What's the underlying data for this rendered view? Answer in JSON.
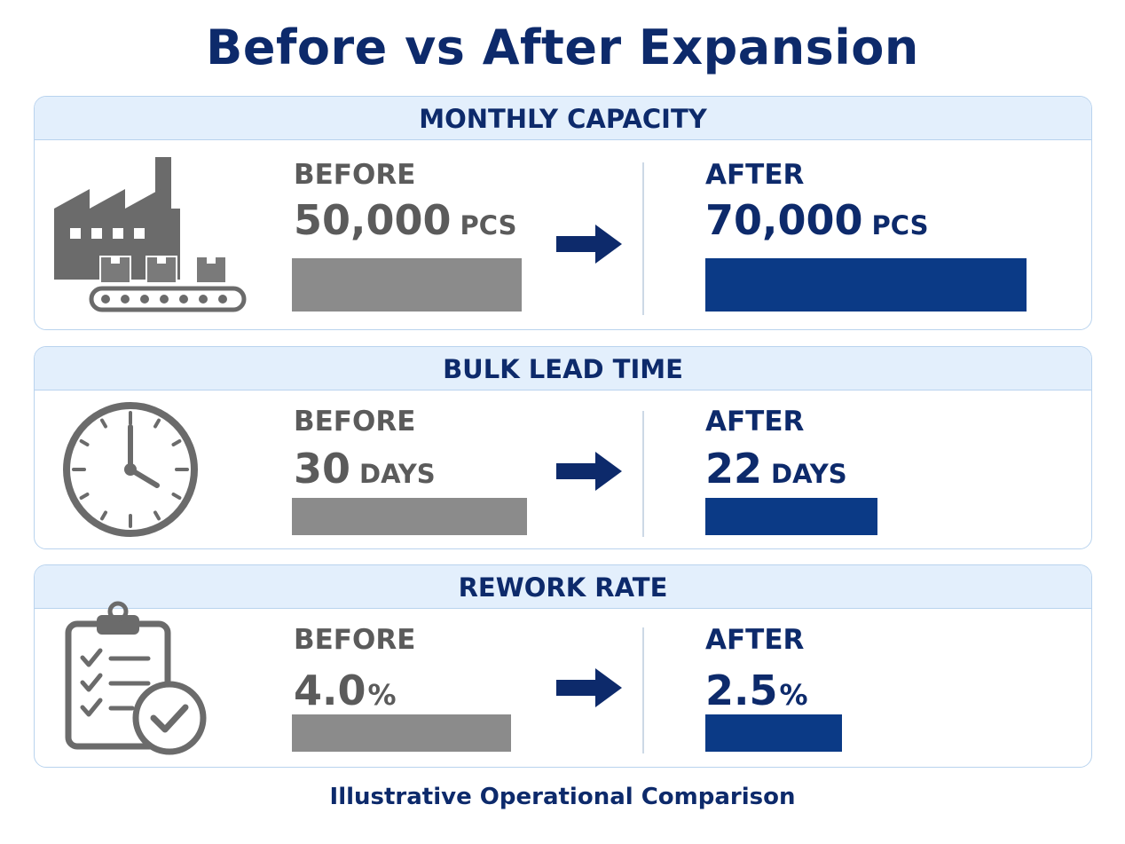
{
  "title": "Before vs After Expansion",
  "footer": "Illustrative Operational Comparison",
  "colors": {
    "navy": "#0d2a6b",
    "before_bar": "#8b8b8b",
    "after_bar": "#0b3a86",
    "header_bg": "#e3effc"
  },
  "panels": [
    {
      "header": "MONTHLY CAPACITY",
      "icon": "factory-conveyor-icon",
      "before_label": "BEFORE",
      "before_value": "50,000",
      "before_unit": "PCS",
      "after_label": "AFTER",
      "after_value": "70,000",
      "after_unit": "PCS"
    },
    {
      "header": "BULK LEAD TIME",
      "icon": "clock-icon",
      "before_label": "BEFORE",
      "before_value": "30",
      "before_unit": "DAYS",
      "after_label": "AFTER",
      "after_value": "22",
      "after_unit": "DAYS"
    },
    {
      "header": "REWORK RATE",
      "icon": "checklist-clipboard-icon",
      "before_label": "BEFORE",
      "before_value": "4.0",
      "before_unit": "%",
      "after_label": "AFTER",
      "after_value": "2.5",
      "after_unit": "%"
    }
  ],
  "chart_data": [
    {
      "type": "bar",
      "title": "MONTHLY CAPACITY",
      "categories": [
        "BEFORE",
        "AFTER"
      ],
      "values": [
        50000,
        70000
      ],
      "unit": "PCS"
    },
    {
      "type": "bar",
      "title": "BULK LEAD TIME",
      "categories": [
        "BEFORE",
        "AFTER"
      ],
      "values": [
        30,
        22
      ],
      "unit": "DAYS"
    },
    {
      "type": "bar",
      "title": "REWORK RATE",
      "categories": [
        "BEFORE",
        "AFTER"
      ],
      "values": [
        4.0,
        2.5
      ],
      "unit": "%"
    }
  ]
}
